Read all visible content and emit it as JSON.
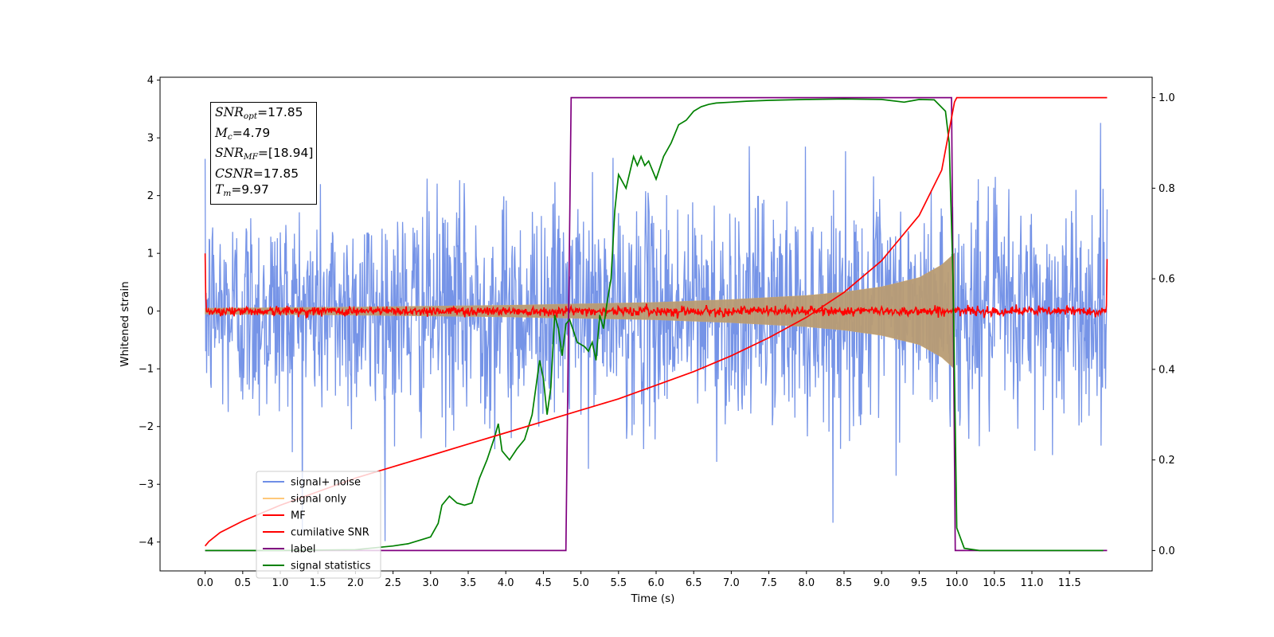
{
  "chart_data": {
    "type": "line",
    "xlabel": "Time (s)",
    "ylabel": "Whitened strain",
    "xlim": [
      -0.6,
      12.6
    ],
    "ylim": [
      -4.5,
      4.05
    ],
    "y2lim": [
      -0.045,
      1.045
    ],
    "x_ticks": [
      0.0,
      0.5,
      1.0,
      1.5,
      2.0,
      2.5,
      3.0,
      3.5,
      4.0,
      4.5,
      5.0,
      5.5,
      6.0,
      6.5,
      7.0,
      7.5,
      8.0,
      8.5,
      9.0,
      9.5,
      10.0,
      10.5,
      11.0,
      11.5
    ],
    "x_tick_labels": [
      "0.0",
      "0.5",
      "1.0",
      "1.5",
      "2.0",
      "2.5",
      "3.0",
      "3.5",
      "4.0",
      "4.5",
      "5.0",
      "5.5",
      "6.0",
      "6.5",
      "7.0",
      "7.5",
      "8.0",
      "8.5",
      "9.0",
      "9.5",
      "10.0",
      "10.5",
      "11.0",
      "11.5"
    ],
    "y_ticks": [
      4,
      3,
      2,
      1,
      0,
      -1,
      -2,
      -3,
      -4
    ],
    "y_tick_labels": [
      "4",
      "3",
      "2",
      "1",
      "0",
      "−1",
      "−2",
      "−3",
      "−4"
    ],
    "y2_ticks": [
      1.0,
      0.8,
      0.6,
      0.4,
      0.2,
      0.0
    ],
    "y2_tick_labels": [
      "1.0",
      "0.8",
      "0.6",
      "0.4",
      "0.2",
      "0.0"
    ],
    "legend_position": "lower-left",
    "legend": [
      {
        "label": "signal+ noise",
        "color": "#6f8ee6"
      },
      {
        "label": "signal only",
        "color": "#ffc87a"
      },
      {
        "label": "MF",
        "color": "#ff0000"
      },
      {
        "label": "cumilative SNR",
        "color": "#ff0000"
      },
      {
        "label": "label",
        "color": "#800080"
      },
      {
        "label": "signal statistics",
        "color": "#008000"
      }
    ],
    "series": [
      {
        "name": "signal+ noise",
        "axis": "left",
        "color": "#6f8ee6",
        "kind": "noise",
        "x_range": [
          0.0,
          12.0
        ],
        "approx_std": 0.95,
        "approx_extremes": [
          -4.1,
          3.7
        ]
      },
      {
        "name": "signal only",
        "axis": "left",
        "color": "#ffc87a",
        "kind": "chirp",
        "x_range": [
          0.0,
          9.97
        ],
        "x": [
          0.0,
          2.0,
          4.0,
          6.0,
          7.0,
          8.0,
          8.5,
          9.0,
          9.5,
          9.8,
          9.97
        ],
        "amplitude": [
          0.05,
          0.07,
          0.1,
          0.15,
          0.2,
          0.27,
          0.33,
          0.42,
          0.58,
          0.8,
          1.0
        ]
      },
      {
        "name": "MF",
        "axis": "left",
        "color": "#ff0000",
        "kind": "noise",
        "x_range": [
          0.0,
          12.0
        ],
        "approx_std": 0.04,
        "edge_values": {
          "start": 1.0,
          "end": 0.9
        }
      },
      {
        "name": "cumilative SNR",
        "axis": "right",
        "color": "#ff0000",
        "x": [
          0.0,
          0.05,
          0.2,
          0.5,
          1.0,
          1.5,
          2.0,
          2.5,
          3.0,
          3.5,
          4.0,
          4.5,
          5.0,
          5.5,
          6.0,
          6.5,
          7.0,
          7.5,
          8.0,
          8.5,
          9.0,
          9.5,
          9.8,
          9.97,
          10.0,
          12.0
        ],
        "y": [
          0.01,
          0.02,
          0.04,
          0.065,
          0.1,
          0.13,
          0.16,
          0.185,
          0.21,
          0.235,
          0.26,
          0.285,
          0.31,
          0.335,
          0.365,
          0.395,
          0.43,
          0.47,
          0.515,
          0.57,
          0.64,
          0.74,
          0.84,
          0.99,
          1.0,
          1.0
        ]
      },
      {
        "name": "label",
        "axis": "right",
        "color": "#800080",
        "x": [
          0.0,
          4.8,
          4.87,
          9.93,
          9.98,
          12.0
        ],
        "y": [
          0.0,
          0.0,
          1.0,
          1.0,
          0.0,
          0.0
        ]
      },
      {
        "name": "signal statistics",
        "axis": "right",
        "color": "#008000",
        "x": [
          0.0,
          0.5,
          1.0,
          1.5,
          2.0,
          2.5,
          2.7,
          2.9,
          3.0,
          3.1,
          3.15,
          3.25,
          3.35,
          3.45,
          3.55,
          3.65,
          3.75,
          3.85,
          3.9,
          3.95,
          4.05,
          4.15,
          4.25,
          4.35,
          4.45,
          4.5,
          4.55,
          4.6,
          4.65,
          4.7,
          4.75,
          4.8,
          4.85,
          4.95,
          5.05,
          5.1,
          5.15,
          5.2,
          5.25,
          5.3,
          5.35,
          5.4,
          5.45,
          5.5,
          5.6,
          5.7,
          5.75,
          5.8,
          5.85,
          5.9,
          6.0,
          6.1,
          6.2,
          6.3,
          6.4,
          6.5,
          6.6,
          6.7,
          6.8,
          7.0,
          7.2,
          7.5,
          8.0,
          8.5,
          9.0,
          9.3,
          9.5,
          9.7,
          9.85,
          9.9,
          9.95,
          10.0,
          10.1,
          10.3,
          10.5,
          11.0,
          11.5,
          11.95
        ],
        "y": [
          0.0,
          0.0,
          0.0,
          0.001,
          0.002,
          0.01,
          0.015,
          0.025,
          0.03,
          0.06,
          0.1,
          0.12,
          0.105,
          0.1,
          0.105,
          0.16,
          0.2,
          0.25,
          0.28,
          0.22,
          0.2,
          0.225,
          0.245,
          0.3,
          0.42,
          0.38,
          0.3,
          0.36,
          0.52,
          0.49,
          0.43,
          0.5,
          0.51,
          0.46,
          0.45,
          0.44,
          0.46,
          0.42,
          0.52,
          0.49,
          0.55,
          0.6,
          0.75,
          0.83,
          0.8,
          0.87,
          0.85,
          0.87,
          0.85,
          0.86,
          0.82,
          0.87,
          0.9,
          0.94,
          0.95,
          0.97,
          0.98,
          0.985,
          0.988,
          0.99,
          0.992,
          0.994,
          0.996,
          0.997,
          0.996,
          0.99,
          0.996,
          0.995,
          0.97,
          0.9,
          0.6,
          0.05,
          0.005,
          0.0,
          0.0,
          0.0,
          0.0,
          0.0
        ]
      }
    ]
  },
  "stats_box": [
    {
      "var": "SNR",
      "sub": "opt",
      "value": "=17.85"
    },
    {
      "var": "M",
      "sub": "c",
      "value": "=4.79"
    },
    {
      "var": "SNR",
      "sub": "MF",
      "value": "=[18.94]"
    },
    {
      "var": "CSNR",
      "sub": "",
      "value": "=17.85"
    },
    {
      "var": "T",
      "sub": "m",
      "value": "=9.97"
    }
  ]
}
